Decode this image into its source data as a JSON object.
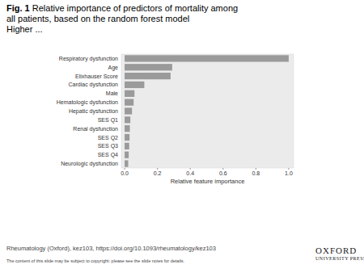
{
  "chart_data": {
    "type": "bar",
    "orientation": "horizontal",
    "categories": [
      "Respiratory dysfunction",
      "Age",
      "Elixhauser Score",
      "Cardiac dysfunction",
      "Male",
      "Hematologic dysfunction",
      "Hepatic dysfunction",
      "SES Q1",
      "Renal dysfunction",
      "SES Q2",
      "SES Q3",
      "SES Q4",
      "Neurologic dysfunction"
    ],
    "values": [
      1.0,
      0.29,
      0.28,
      0.12,
      0.06,
      0.055,
      0.045,
      0.035,
      0.032,
      0.03,
      0.028,
      0.025,
      0.022
    ],
    "color": "#9a9a9a",
    "x_label": "Relative feature importance",
    "xlim": [
      -0.02,
      1.03
    ],
    "xticks": [
      {
        "value": 0,
        "label": "0.0"
      },
      {
        "value": 0.2,
        "label": "0.2"
      },
      {
        "value": 0.4,
        "label": "0.4"
      },
      {
        "value": 0.6,
        "label": "0.6"
      },
      {
        "value": 0.8,
        "label": "0.8"
      },
      {
        "value": 1,
        "label": "1.0"
      }
    ],
    "grid": false
  },
  "slide": {
    "figure_label": "Fig. 1",
    "title": "Relative importance of predictors of mortality among all patients, based on the random forest model",
    "subtitle": "Higher ...",
    "citation": "Rheumatology (Oxford), kez103, https://doi.org/10.1093/rheumatology/kez103",
    "notice": "The content of this slide may be subject to copyright: please see the slide notes for details.",
    "publisher": "OXFORD",
    "publisher_sub": "UNIVERSITY PRESS"
  }
}
